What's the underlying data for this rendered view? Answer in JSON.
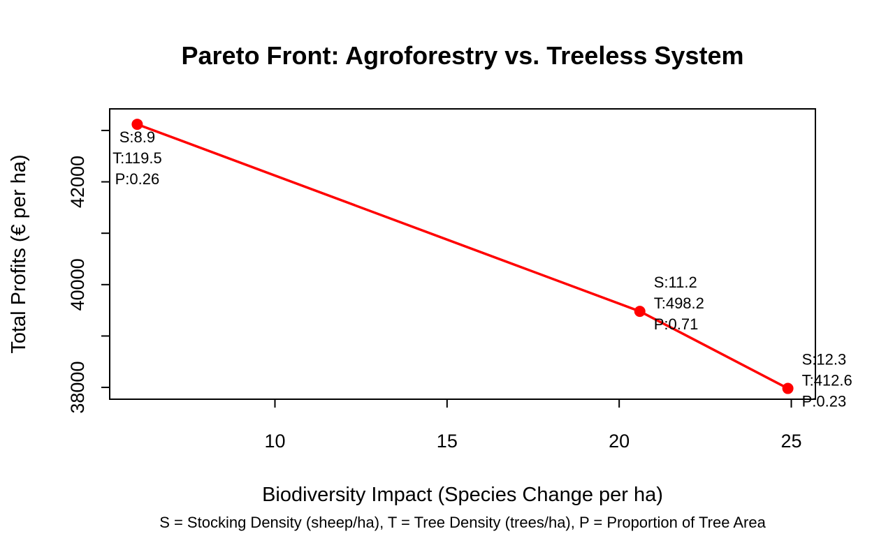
{
  "chart_data": {
    "type": "line",
    "title": "Pareto Front: Agroforestry vs. Treeless System",
    "xlabel": "Biodiversity Impact (Species Change per ha)",
    "ylabel": "Total Profits (€ per ha)",
    "caption": "S = Stocking Density (sheep/ha), T = Tree Density (trees/ha), P = Proportion of Tree Area",
    "xlim": [
      5.2,
      25.7
    ],
    "ylim": [
      37770,
      43420
    ],
    "x_ticks": [
      10,
      15,
      20,
      25
    ],
    "y_ticks": [
      38000,
      40000,
      42000
    ],
    "x_tick_labels": [
      "10",
      "15",
      "20",
      "25"
    ],
    "y_tick_labels": [
      "38000",
      "40000",
      "42000"
    ],
    "grid": false,
    "legend": "none",
    "series_color": "#ff0000",
    "series": [
      {
        "points": [
          {
            "x": 6.0,
            "y": 43120,
            "label": [
              "S:8.9",
              "T:119.5",
              "P:0.26"
            ]
          },
          {
            "x": 20.6,
            "y": 39480,
            "label": [
              "S:11.2",
              "T:498.2",
              "P:0.71"
            ]
          },
          {
            "x": 24.9,
            "y": 37980,
            "label": [
              "S:12.3",
              "T:412.6",
              "P:0.23"
            ]
          }
        ]
      }
    ]
  }
}
